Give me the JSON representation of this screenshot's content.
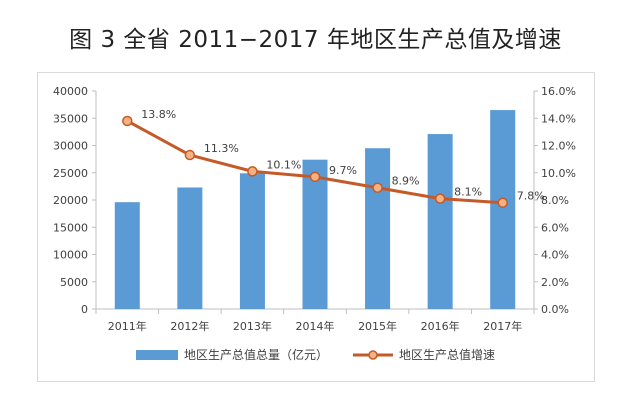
{
  "figure": {
    "title": "图 3  全省 2011−2017 年地区生产总值及增速"
  },
  "colors": {
    "bar": "#5b9bd5",
    "line": "#c55a28",
    "marker_fill": "#f4b183",
    "axis": "#bfbfbf",
    "text": "#404040"
  },
  "chart_data": {
    "type": "bar",
    "categories": [
      "2011年",
      "2012年",
      "2013年",
      "2014年",
      "2015年",
      "2016年",
      "2017年"
    ],
    "series": [
      {
        "name": "地区生产总值总量（亿元）",
        "type": "bar",
        "axis": "left",
        "values": [
          19600,
          22300,
          24900,
          27400,
          29500,
          32100,
          36500
        ]
      },
      {
        "name": "地区生产总值增速",
        "type": "line",
        "axis": "right",
        "values": [
          13.8,
          11.3,
          10.1,
          9.7,
          8.9,
          8.1,
          7.8
        ],
        "labels": [
          "13.8%",
          "11.3%",
          "10.1%",
          "9.7%",
          "8.9%",
          "8.1%",
          "7.8%"
        ]
      }
    ],
    "y_left": {
      "ylim": [
        0,
        40000
      ],
      "ticks": [
        "0",
        "5000",
        "10000",
        "15000",
        "20000",
        "25000",
        "30000",
        "35000",
        "40000"
      ]
    },
    "y_right": {
      "ylim": [
        0,
        16
      ],
      "ticks": [
        "0.0%",
        "2.0%",
        "4.0%",
        "6.0%",
        "8.0%",
        "10.0%",
        "12.0%",
        "14.0%",
        "16.0%"
      ]
    },
    "grid": false,
    "legend_position": "bottom"
  }
}
